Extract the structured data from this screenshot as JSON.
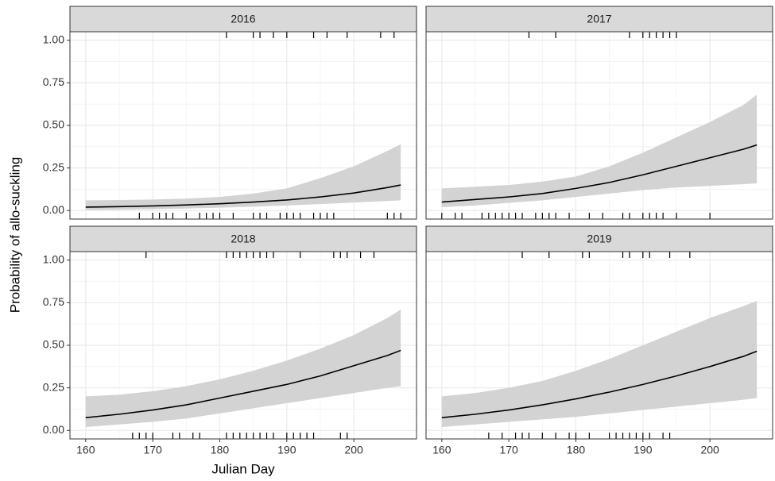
{
  "chart_data": {
    "type": "line",
    "xlabel": "Julian Day",
    "ylabel": "Probability of allo-suckling",
    "xlim": [
      157.65,
      209.35
    ],
    "ylim": [
      -0.05,
      1.05
    ],
    "xticks": [
      160,
      170,
      180,
      190,
      200
    ],
    "yticks": [
      {
        "value": 0,
        "label": "0.00"
      },
      {
        "value": 0.25,
        "label": "0.25"
      },
      {
        "value": 0.5,
        "label": "0.50"
      },
      {
        "value": 0.75,
        "label": "0.75"
      },
      {
        "value": 1,
        "label": "1.00"
      }
    ],
    "grid": true,
    "line_color": "#000000",
    "ribbon_color": "#d3d3d3",
    "x": [
      160,
      165,
      170,
      175,
      180,
      185,
      190,
      195,
      200,
      205,
      207
    ],
    "panels": [
      {
        "title": "2016",
        "values": [
          0.02,
          0.023,
          0.027,
          0.033,
          0.04,
          0.05,
          0.062,
          0.08,
          0.103,
          0.135,
          0.15
        ],
        "lower": [
          0.003,
          0.005,
          0.008,
          0.012,
          0.017,
          0.023,
          0.03,
          0.038,
          0.047,
          0.056,
          0.06
        ],
        "upper": [
          0.06,
          0.062,
          0.065,
          0.07,
          0.08,
          0.1,
          0.13,
          0.19,
          0.26,
          0.35,
          0.39
        ],
        "rug_top": [
          181,
          185,
          186,
          188,
          190,
          194,
          196,
          199,
          204,
          206
        ],
        "rug_bottom": [
          168,
          170,
          171,
          172,
          173,
          175,
          177,
          178,
          179,
          180,
          182,
          185,
          186,
          187,
          189,
          190,
          191,
          192,
          194,
          195,
          196,
          197,
          205,
          206,
          207
        ]
      },
      {
        "title": "2017",
        "values": [
          0.05,
          0.065,
          0.08,
          0.1,
          0.13,
          0.165,
          0.21,
          0.26,
          0.31,
          0.36,
          0.385
        ],
        "lower": [
          0.02,
          0.03,
          0.045,
          0.06,
          0.08,
          0.1,
          0.12,
          0.135,
          0.145,
          0.155,
          0.16
        ],
        "upper": [
          0.13,
          0.14,
          0.15,
          0.17,
          0.2,
          0.26,
          0.34,
          0.43,
          0.52,
          0.62,
          0.68
        ],
        "rug_top": [
          173,
          177,
          188,
          190,
          191,
          192,
          193,
          194,
          195
        ],
        "rug_bottom": [
          160,
          162,
          163,
          166,
          167,
          168,
          169,
          170,
          171,
          172,
          174,
          175,
          176,
          177,
          179,
          182,
          184,
          187,
          188,
          190,
          191,
          192,
          193,
          195,
          200
        ]
      },
      {
        "title": "2018",
        "values": [
          0.075,
          0.095,
          0.12,
          0.15,
          0.19,
          0.23,
          0.27,
          0.32,
          0.38,
          0.44,
          0.47
        ],
        "lower": [
          0.02,
          0.035,
          0.05,
          0.07,
          0.1,
          0.13,
          0.16,
          0.19,
          0.22,
          0.25,
          0.26
        ],
        "upper": [
          0.2,
          0.21,
          0.23,
          0.26,
          0.3,
          0.35,
          0.41,
          0.48,
          0.56,
          0.66,
          0.71
        ],
        "rug_top": [
          169,
          181,
          182,
          183,
          184,
          185,
          186,
          187,
          188,
          192,
          197,
          198,
          199,
          201,
          203
        ],
        "rug_bottom": [
          167,
          168,
          169,
          170,
          173,
          174,
          176,
          177,
          181,
          182,
          183,
          184,
          185,
          186,
          187,
          188,
          190,
          191,
          192,
          193,
          194,
          198,
          199
        ]
      },
      {
        "title": "2019",
        "values": [
          0.075,
          0.095,
          0.12,
          0.15,
          0.185,
          0.225,
          0.27,
          0.32,
          0.375,
          0.435,
          0.465
        ],
        "lower": [
          0.02,
          0.035,
          0.05,
          0.065,
          0.08,
          0.1,
          0.12,
          0.14,
          0.16,
          0.18,
          0.19
        ],
        "upper": [
          0.2,
          0.22,
          0.25,
          0.29,
          0.35,
          0.42,
          0.5,
          0.58,
          0.66,
          0.73,
          0.76
        ],
        "rug_top": [
          172,
          176,
          181,
          182,
          187,
          188,
          190,
          191,
          194,
          197
        ],
        "rug_bottom": [
          167,
          169,
          171,
          172,
          173,
          175,
          177,
          179,
          180,
          182,
          185,
          186,
          187,
          188,
          189,
          190,
          191,
          193,
          194
        ]
      }
    ]
  }
}
